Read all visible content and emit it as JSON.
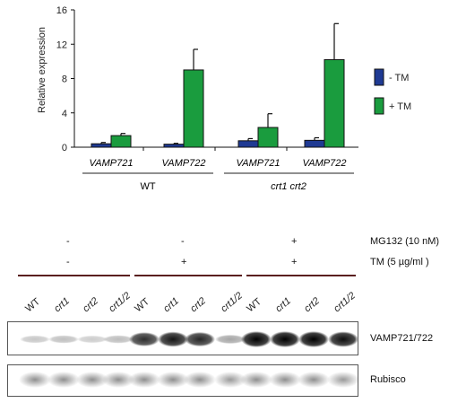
{
  "chart_data": {
    "type": "bar",
    "ylabel": "Relative expression",
    "ylim": [
      0,
      16
    ],
    "yticks": [
      "0",
      "4",
      "8",
      "12",
      "16"
    ],
    "categories": [
      "VAMP721",
      "VAMP722",
      "VAMP721",
      "VAMP722"
    ],
    "groups": [
      "WT",
      "crt1 crt2"
    ],
    "series": [
      {
        "name": "- TM",
        "color": "#1f3a93",
        "values": [
          0.4,
          0.35,
          0.75,
          0.8
        ],
        "errors": [
          0.15,
          0.1,
          0.25,
          0.3
        ]
      },
      {
        "name": "+ TM",
        "color": "#1a9c3e",
        "values": [
          1.35,
          9.0,
          2.3,
          10.2
        ],
        "errors": [
          0.25,
          2.4,
          1.6,
          4.2
        ]
      }
    ]
  },
  "blot": {
    "mg132": {
      "label": "MG132 (10 nM)",
      "marks": [
        "-",
        "-",
        "+"
      ]
    },
    "tm": {
      "label": "TM (5 µg/ml )",
      "marks": [
        "-",
        "+",
        "+"
      ]
    },
    "lanes": [
      "WT",
      "crt1",
      "crt2",
      "crt1/2",
      "WT",
      "crt1",
      "crt2",
      "crt1/2",
      "WT",
      "crt1",
      "crt2",
      "crt1/2"
    ],
    "band_intensity": [
      0.22,
      0.25,
      0.2,
      0.26,
      0.82,
      0.92,
      0.85,
      0.35,
      1.0,
      1.0,
      1.0,
      0.95
    ],
    "rubisco_intensity": [
      0.55,
      0.55,
      0.55,
      0.55,
      0.55,
      0.55,
      0.55,
      0.5,
      0.55,
      0.55,
      0.55,
      0.5
    ],
    "row1_label": "VAMP721/722",
    "row2_label": "Rubisco"
  }
}
